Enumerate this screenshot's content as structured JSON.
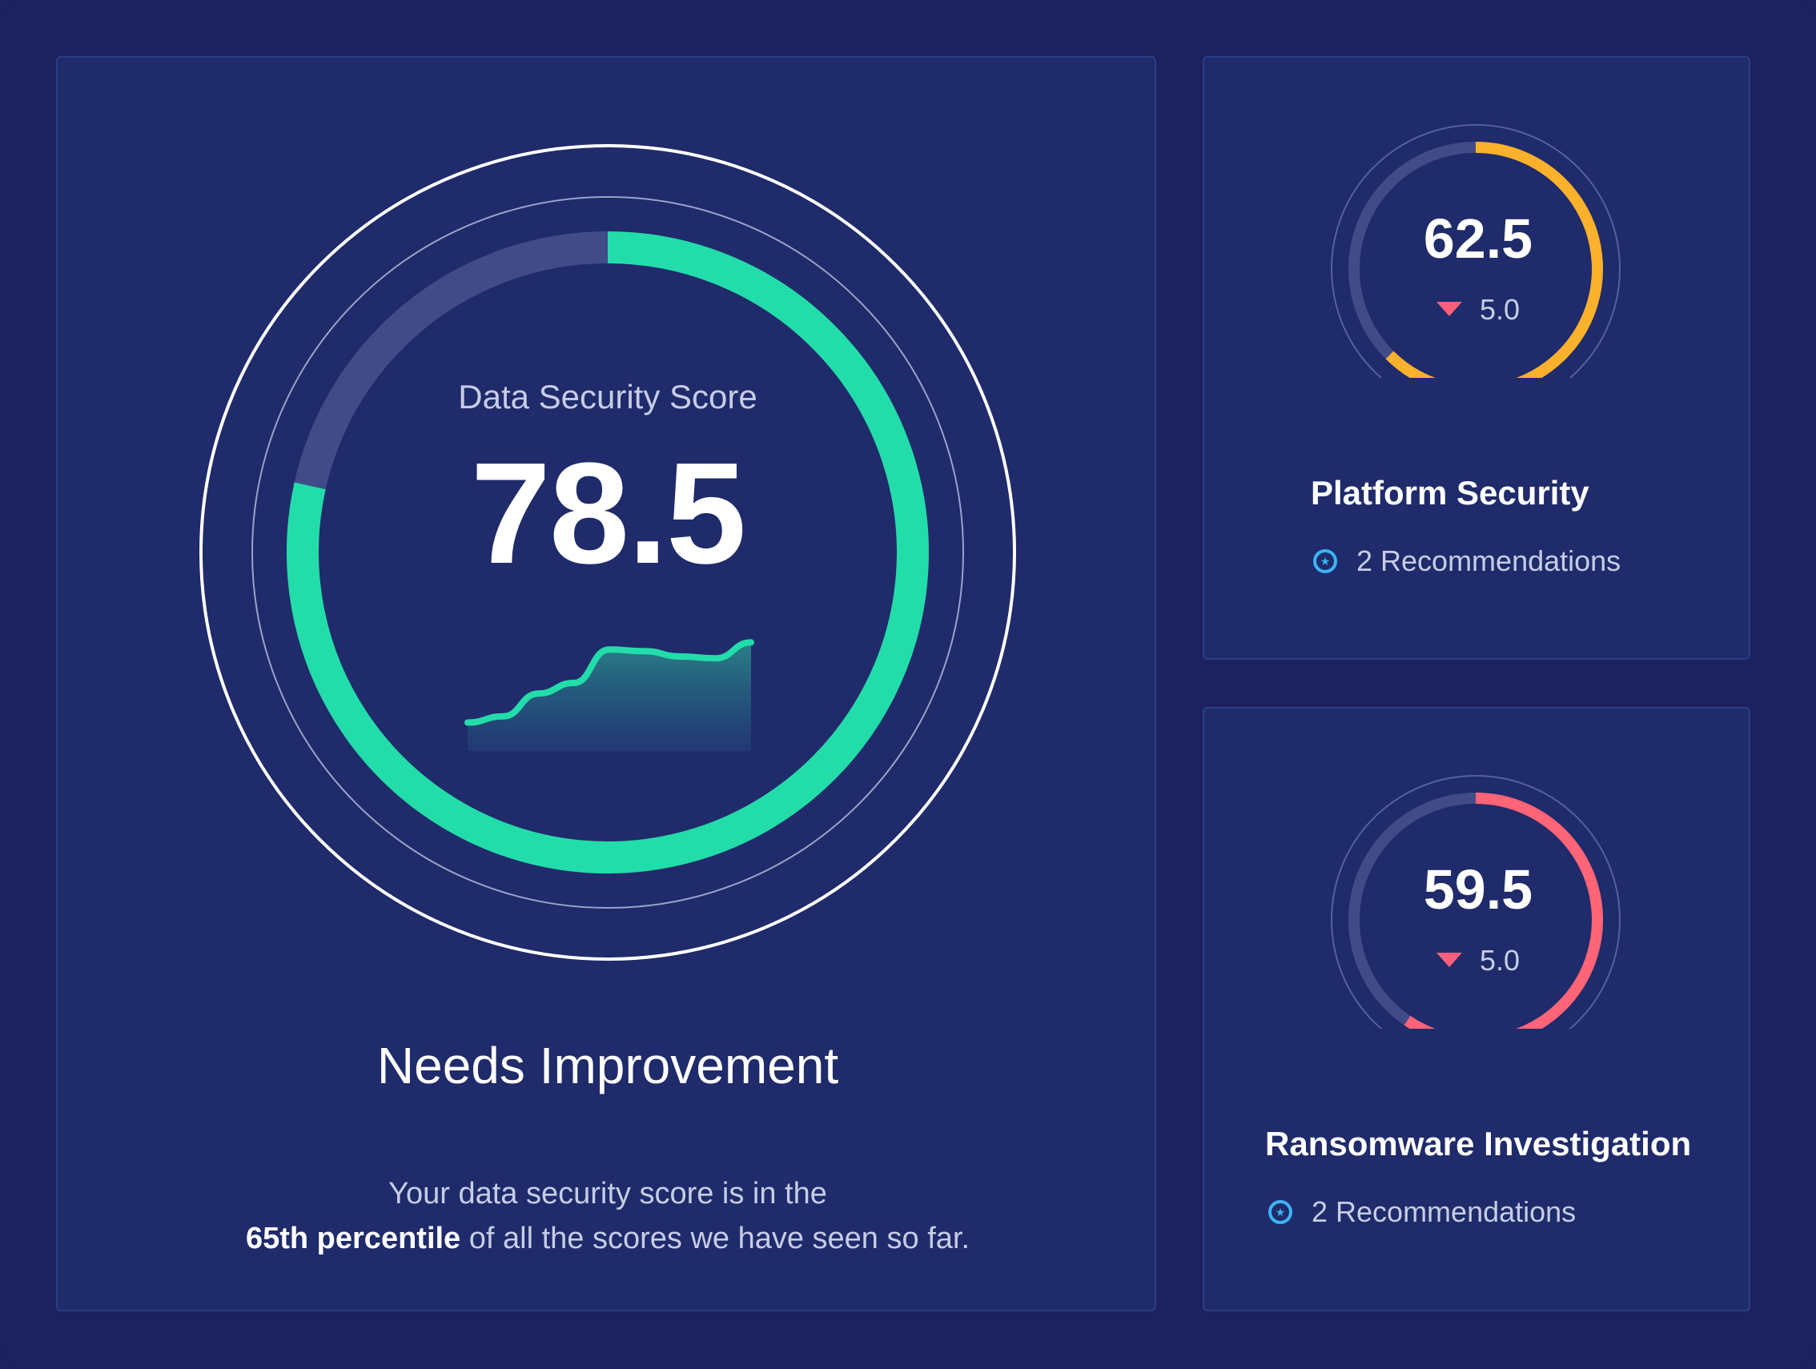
{
  "main": {
    "label": "Data Security Score",
    "score": "78.5",
    "score_value": 78.5,
    "status_title": "Needs Improvement",
    "description_line1": "Your data security score is in the",
    "description_bold": "65th percentile",
    "description_rest": " of all the scores we have seen so far.",
    "gauge_color": "#22ddaa",
    "trend": [
      0.05,
      0.12,
      0.38,
      0.5,
      0.88,
      0.86,
      0.8,
      0.78,
      0.96
    ]
  },
  "platform": {
    "score": "62.5",
    "score_value": 62.5,
    "delta": "5.0",
    "delta_direction": "down",
    "title": "Platform Security",
    "recommendations": "2 Recommendations",
    "gauge_color": "#fbb12b"
  },
  "ransomware": {
    "score": "59.5",
    "score_value": 59.5,
    "delta": "5.0",
    "delta_direction": "down",
    "title": "Ransomware Investigation",
    "recommendations": "2 Recommendations",
    "gauge_color": "#ff6477"
  },
  "colors": {
    "background": "#1d215f",
    "card": "#1f2b6a",
    "delta_down": "#ff5f7a",
    "recommendation_icon": "#3bb4f5"
  }
}
